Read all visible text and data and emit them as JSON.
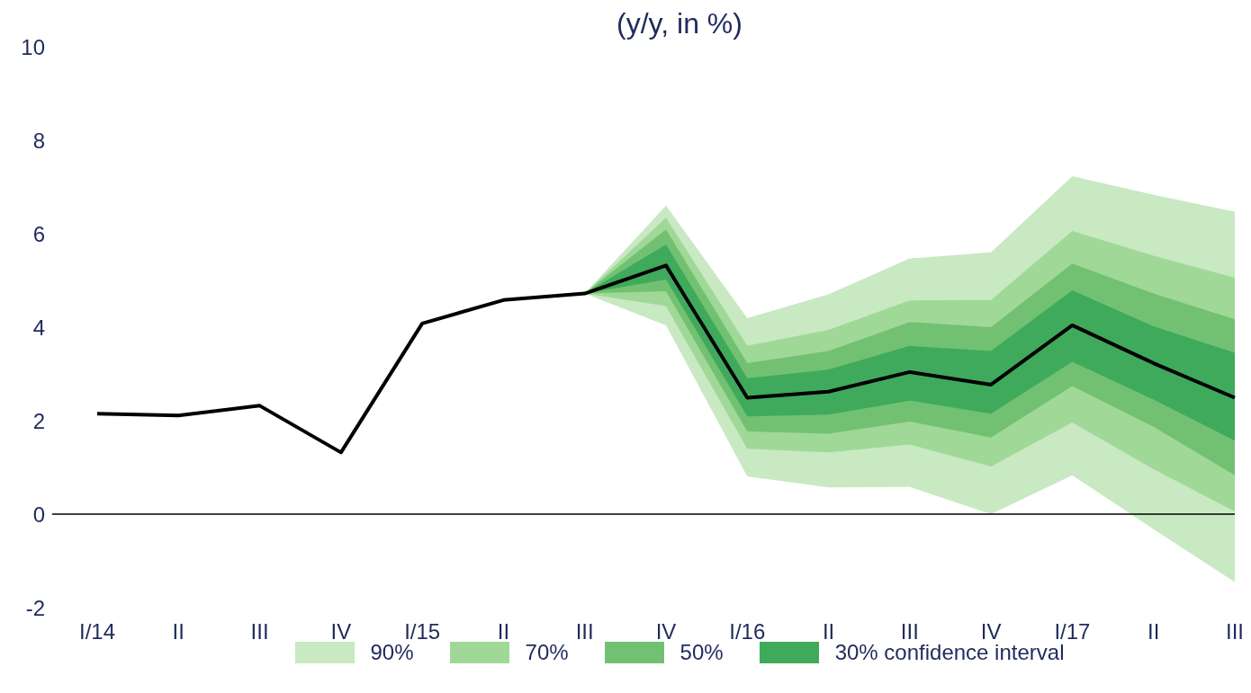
{
  "chart_data": {
    "type": "line",
    "title": "(y/y, in %)",
    "categories": [
      "I/14",
      "II",
      "III",
      "IV",
      "I/15",
      "II",
      "III",
      "IV",
      "I/16",
      "II",
      "III",
      "IV",
      "I/17",
      "II",
      "III"
    ],
    "series": [
      {
        "name": "90%",
        "type": "area",
        "color": "#c8e9c2",
        "values": [
          null,
          null,
          null,
          null,
          null,
          null,
          null,
          null,
          null,
          null,
          null,
          null,
          null,
          null,
          null
        ],
        "lower": [
          null,
          null,
          null,
          null,
          null,
          null,
          4.72,
          4.04,
          0.81,
          0.57,
          0.58,
          0,
          0.83,
          -0.32,
          -1.45
        ],
        "upper": [
          null,
          null,
          null,
          null,
          null,
          null,
          4.72,
          6.6,
          4.19,
          4.7,
          5.47,
          5.6,
          7.23,
          6.83,
          6.47
        ]
      },
      {
        "name": "70%",
        "type": "area",
        "color": "#a0d898",
        "values": [
          null,
          null,
          null,
          null,
          null,
          null,
          null,
          null,
          null,
          null,
          null,
          null,
          null,
          null,
          null
        ],
        "lower": [
          null,
          null,
          null,
          null,
          null,
          null,
          4.72,
          4.45,
          1.4,
          1.32,
          1.49,
          1.02,
          1.96,
          0.96,
          0.06
        ],
        "upper": [
          null,
          null,
          null,
          null,
          null,
          null,
          4.72,
          6.34,
          3.6,
          3.94,
          4.57,
          4.58,
          6.06,
          5.53,
          5.06
        ]
      },
      {
        "name": "50%",
        "type": "area",
        "color": "#72c173",
        "values": [
          null,
          null,
          null,
          null,
          null,
          null,
          null,
          null,
          null,
          null,
          null,
          null,
          null,
          null,
          null
        ],
        "lower": [
          null,
          null,
          null,
          null,
          null,
          null,
          4.72,
          4.77,
          1.77,
          1.72,
          1.98,
          1.64,
          2.74,
          1.87,
          0.83
        ],
        "upper": [
          null,
          null,
          null,
          null,
          null,
          null,
          4.72,
          6.09,
          3.23,
          3.49,
          4.11,
          4.0,
          5.36,
          4.72,
          4.17
        ]
      },
      {
        "name": "30% confidence interval",
        "type": "area",
        "color": "#3faa5b",
        "values": [
          null,
          null,
          null,
          null,
          null,
          null,
          null,
          null,
          null,
          null,
          null,
          null,
          null,
          null,
          null
        ],
        "lower": [
          null,
          null,
          null,
          null,
          null,
          null,
          4.72,
          5.02,
          2.09,
          2.13,
          2.43,
          2.15,
          3.26,
          2.45,
          1.57
        ],
        "upper": [
          null,
          null,
          null,
          null,
          null,
          null,
          4.72,
          5.77,
          2.91,
          3.09,
          3.6,
          3.49,
          4.79,
          4.02,
          3.45
        ]
      },
      {
        "color": "#000000",
        "values": [
          2.15,
          2.11,
          2.32,
          1.32,
          4.08,
          4.58,
          4.72,
          5.32,
          2.49,
          2.62,
          3.04,
          2.77,
          4.04,
          3.23,
          2.49
        ]
      }
    ],
    "ylim": [
      -2,
      10
    ],
    "yticks": [
      -2,
      0,
      2,
      4,
      6,
      8,
      10
    ],
    "ref_lines": [
      {
        "axis": "y",
        "value": 0,
        "color": "#000000"
      }
    ],
    "grid": false,
    "legend": "bottom",
    "marker": "none",
    "line_style": "solid"
  }
}
